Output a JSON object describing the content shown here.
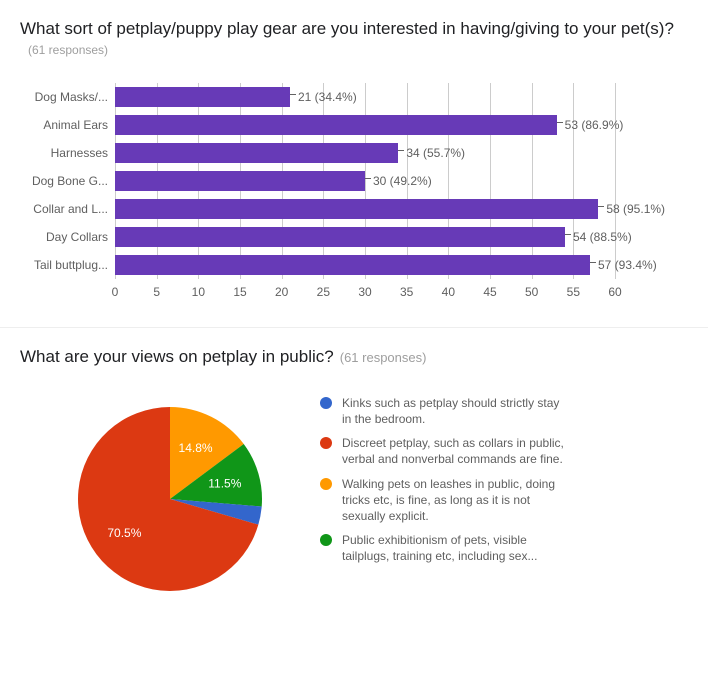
{
  "q1": {
    "title": "What sort of petplay/puppy play gear are you interested in having/giving to your pet(s)?",
    "responses_label": "(61 responses)",
    "type": "bar",
    "xmax": 60,
    "xtick_step": 5,
    "bar_color": "#673ab7",
    "grid_color": "#cccccc",
    "label_color": "#5f5f5f",
    "items": [
      {
        "label": "Dog Masks/...",
        "value": 21,
        "pct": "34.4%",
        "display": "21 (34.4%)"
      },
      {
        "label": "Animal Ears",
        "value": 53,
        "pct": "86.9%",
        "display": "53 (86.9%)"
      },
      {
        "label": "Harnesses",
        "value": 34,
        "pct": "55.7%",
        "display": "34 (55.7%)"
      },
      {
        "label": "Dog Bone G...",
        "value": 30,
        "pct": "49.2%",
        "display": "30 (49.2%)"
      },
      {
        "label": "Collar and L...",
        "value": 58,
        "pct": "95.1%",
        "display": "58 (95.1%)"
      },
      {
        "label": "Day Collars",
        "value": 54,
        "pct": "88.5%",
        "display": "54 (88.5%)"
      },
      {
        "label": "Tail buttplug...",
        "value": 57,
        "pct": "93.4%",
        "display": "57 (93.4%)"
      }
    ]
  },
  "q2": {
    "title": "What are your views on petplay in public?",
    "responses_label": "(61 responses)",
    "type": "pie",
    "slices": [
      {
        "label": "Kinks such as petplay should strictly stay in the bedroom.",
        "pct": 3.2,
        "color": "#3366cc",
        "show_label": false
      },
      {
        "label": "Discreet petplay, such as collars in public, verbal and nonverbal commands are fine.",
        "pct": 70.5,
        "color": "#dc3912",
        "show_label": true,
        "label_text": "70.5%"
      },
      {
        "label": "Walking pets on leashes in public, doing tricks etc, is fine, as long as it is not sexually explicit.",
        "pct": 14.8,
        "color": "#ff9900",
        "show_label": true,
        "label_text": "14.8%"
      },
      {
        "label": "Public exhibitionism of pets, visible tailplugs, training etc, including sex...",
        "pct": 11.5,
        "color": "#109618",
        "show_label": true,
        "label_text": "11.5%"
      }
    ],
    "legend_order": [
      0,
      1,
      2,
      3
    ]
  }
}
